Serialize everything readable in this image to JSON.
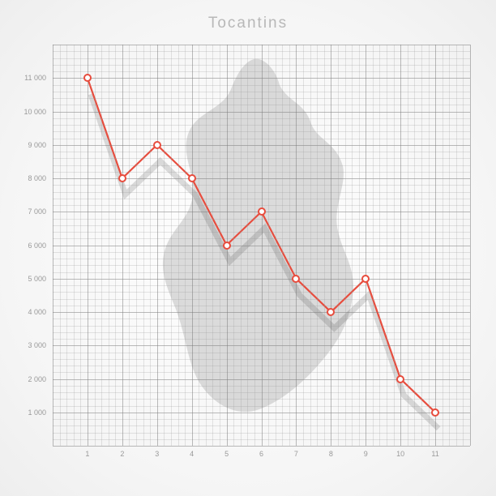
{
  "title": "Tocantins",
  "chart": {
    "type": "line",
    "xlim": [
      0,
      12
    ],
    "ylim": [
      0,
      12000
    ],
    "y_ticks": [
      1000,
      2000,
      3000,
      4000,
      5000,
      6000,
      7000,
      8000,
      9000,
      10000,
      11000
    ],
    "y_tick_labels": [
      "1 000",
      "2 000",
      "3 000",
      "4 000",
      "5 000",
      "6 000",
      "7 000",
      "8 000",
      "9 000",
      "10 000",
      "11 000"
    ],
    "x_ticks": [
      1,
      2,
      3,
      4,
      5,
      6,
      7,
      8,
      9,
      10,
      11
    ],
    "x_tick_labels": [
      "1",
      "2",
      "3",
      "4",
      "5",
      "6",
      "7",
      "8",
      "9",
      "10",
      "11"
    ],
    "minor_grid_divisions": 5,
    "grid_major_color": "rgba(120,120,120,0.5)",
    "grid_minor_color": "rgba(150,150,150,0.25)",
    "background_color": "#ffffff",
    "line_color": "#e84c3d",
    "line_width": 2.2,
    "marker_fill": "#ffffff",
    "marker_stroke": "#e84c3d",
    "marker_size": 10,
    "map_fill": "#bfbfbf",
    "map_opacity": 0.55,
    "shadow_color": "rgba(0,0,0,0.15)",
    "data": {
      "x": [
        1,
        2,
        3,
        4,
        5,
        6,
        7,
        8,
        9,
        10,
        11
      ],
      "y": [
        11000,
        8000,
        9000,
        8000,
        6000,
        7000,
        5000,
        4000,
        5000,
        2000,
        1000
      ]
    },
    "title_color": "#b8b8b8",
    "title_fontsize": 19,
    "label_color": "#999999",
    "label_fontsize": 9
  }
}
